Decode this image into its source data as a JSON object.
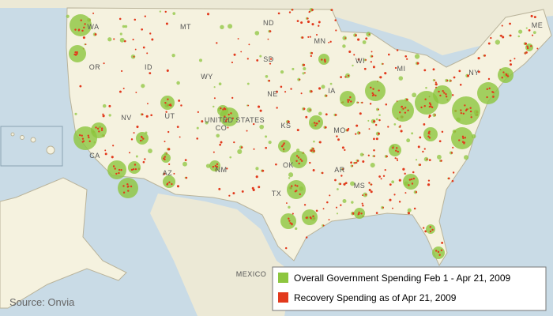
{
  "map": {
    "state_labels": [
      "WA",
      "MT",
      "ND",
      "MN",
      "OR",
      "ID",
      "SD",
      "WY",
      "WI",
      "MI",
      "NE",
      "NV",
      "UT",
      "UNITED STATES",
      "IA",
      "CA",
      "CO",
      "KS",
      "MO",
      "AZ",
      "NM",
      "OK",
      "AR",
      "MS",
      "TX",
      "NY",
      "ME"
    ],
    "country_label": "MEXICO",
    "source": "Source: Onvia",
    "legend": [
      {
        "label": "Overall Government Spending Feb 1 - Apr 21, 2009",
        "color": "#8dc63f"
      },
      {
        "label": "Recovery Spending as of Apr 21, 2009",
        "color": "#e2391c"
      }
    ]
  }
}
